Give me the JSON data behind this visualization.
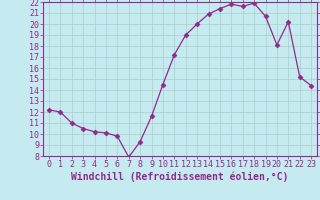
{
  "x": [
    0,
    1,
    2,
    3,
    4,
    5,
    6,
    7,
    8,
    9,
    10,
    11,
    12,
    13,
    14,
    15,
    16,
    17,
    18,
    19,
    20,
    21,
    22,
    23
  ],
  "y": [
    12.2,
    12.0,
    11.0,
    10.5,
    10.2,
    10.1,
    9.8,
    7.9,
    9.3,
    11.6,
    14.5,
    17.2,
    19.0,
    20.0,
    20.9,
    21.4,
    21.8,
    21.6,
    21.9,
    20.7,
    18.1,
    20.2,
    15.2,
    14.4
  ],
  "line_color": "#912B8A",
  "marker": "D",
  "marker_size": 2.5,
  "bg_color": "#C5EAF0",
  "grid_color": "#AACCCC",
  "xlabel": "Windchill (Refroidissement éolien,°C)",
  "xlabel_fontsize": 7,
  "tick_fontsize": 6,
  "ylim": [
    8,
    22
  ],
  "xlim": [
    -0.5,
    23.5
  ],
  "yticks": [
    8,
    9,
    10,
    11,
    12,
    13,
    14,
    15,
    16,
    17,
    18,
    19,
    20,
    21,
    22
  ],
  "xticks": [
    0,
    1,
    2,
    3,
    4,
    5,
    6,
    7,
    8,
    9,
    10,
    11,
    12,
    13,
    14,
    15,
    16,
    17,
    18,
    19,
    20,
    21,
    22,
    23
  ]
}
